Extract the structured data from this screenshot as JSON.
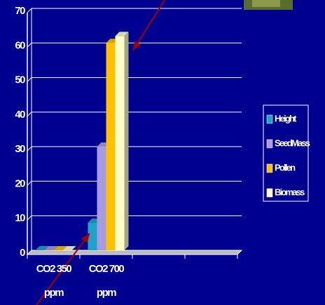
{
  "chart_data": {
    "type": "bar",
    "categories": [
      "CO2 350 ppm",
      "CO2 700 ppm",
      null,
      null
    ],
    "series": [
      {
        "name": "Height",
        "color": "#1fa3c9",
        "values": [
          0,
          8,
          null,
          null
        ]
      },
      {
        "name": "SeedMass",
        "color": "#a99be0",
        "values": [
          0,
          30,
          null,
          null
        ]
      },
      {
        "name": "Pollen",
        "color": "#ffc000",
        "values": [
          0,
          60,
          null,
          null
        ]
      },
      {
        "name": "Biomass",
        "color": "#ffffcc",
        "values": [
          0,
          62,
          null,
          null
        ]
      }
    ],
    "ylim": [
      0,
      70
    ],
    "yticks": [
      0,
      10,
      20,
      30,
      40,
      50,
      60,
      70
    ],
    "grid": true,
    "legend": "right"
  }
}
